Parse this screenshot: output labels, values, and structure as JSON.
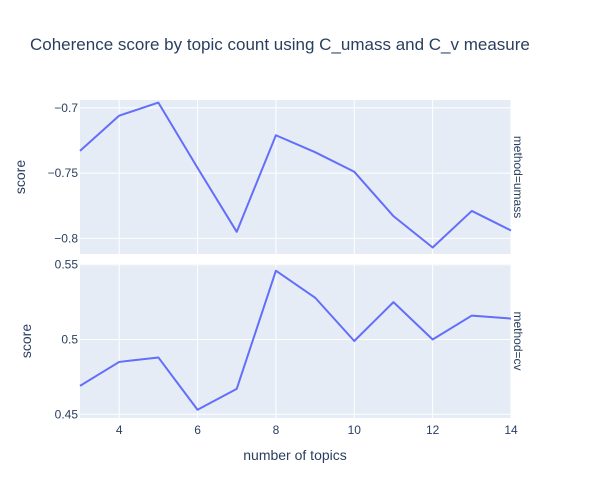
{
  "chart_data": {
    "type": "line",
    "title": "Coherence score by topic count using C_umass and C_v measure",
    "xlabel": "number of topics",
    "x_ticks": [
      4,
      6,
      8,
      10,
      12,
      14
    ],
    "xlim": [
      3,
      14
    ],
    "colors": {
      "line": "#636efa",
      "panel_bg": "#e5ecf6",
      "grid": "#ffffff",
      "text": "#2a3f5f"
    },
    "x": [
      3,
      4,
      5,
      6,
      7,
      8,
      9,
      10,
      11,
      12,
      13,
      14
    ],
    "panels": [
      {
        "facet_label": "method=umass",
        "ylabel": "score",
        "ylim": [
          -0.812,
          -0.694
        ],
        "y_ticks": [
          -0.7,
          -0.75,
          -0.8
        ],
        "y_tick_labels": [
          "−0.7",
          "−0.75",
          "−0.8"
        ],
        "values": [
          -0.733,
          -0.706,
          -0.696,
          -0.746,
          -0.795,
          -0.721,
          -0.734,
          -0.749,
          -0.783,
          -0.807,
          -0.779,
          -0.794
        ]
      },
      {
        "facet_label": "method=cv",
        "ylabel": "score",
        "ylim": [
          0.4475,
          0.5505
        ],
        "y_ticks": [
          0.55,
          0.5,
          0.45
        ],
        "y_tick_labels": [
          "0.55",
          "0.5",
          "0.45"
        ],
        "values": [
          0.469,
          0.485,
          0.488,
          0.453,
          0.467,
          0.546,
          0.528,
          0.499,
          0.525,
          0.5,
          0.516,
          0.514
        ]
      }
    ]
  }
}
